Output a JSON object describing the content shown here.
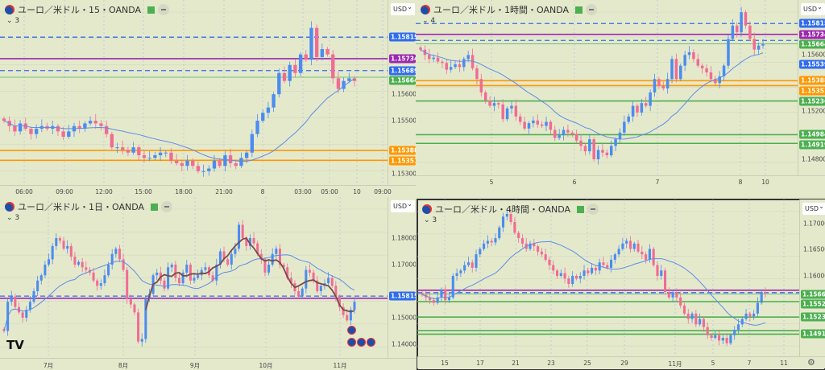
{
  "colors": {
    "bg": "#e5e9cc",
    "up": "#4a8cf0",
    "down": "#f06c93",
    "ma": "#5b8de8",
    "blue": "#2f6cf0",
    "purple": "#9c27b0",
    "green": "#4caf50",
    "orange": "#ff9800",
    "wave": "#7a4a4a"
  },
  "panels": [
    {
      "symbol": "ユーロ／米ドル",
      "interval": "15",
      "broker": "OANDA",
      "sep": "・",
      "collapse": "3",
      "currency": "USD",
      "axis_labels": [
        "1.15600",
        "1.15500",
        "1.15300"
      ],
      "time_labels": [
        "06:00",
        "09:00",
        "12:00",
        "15:00",
        "18:00",
        "21:00",
        "8",
        "03:00",
        "05:00",
        "10",
        "09:00"
      ],
      "hlines": [
        {
          "price": "1.15815",
          "color": "blue",
          "style": "dashed"
        },
        {
          "price": "1.15734",
          "color": "purple",
          "style": "solid"
        },
        {
          "price": "1.15689",
          "color": "blue",
          "style": "dashed"
        },
        {
          "price": "1.15664",
          "color": "green",
          "style": "thin"
        },
        {
          "price": "1.15388",
          "color": "orange",
          "style": "solid"
        },
        {
          "price": "1.15351",
          "color": "orange",
          "style": "solid"
        }
      ],
      "chart_data": {
        "type": "candlestick",
        "ylim": [
          1.15258,
          1.15955
        ],
        "ma_period": 20,
        "closes": [
          1.155,
          1.1548,
          1.1546,
          1.1549,
          1.1547,
          1.1545,
          1.1547,
          1.1548,
          1.1547,
          1.1548,
          1.1546,
          1.1544,
          1.1546,
          1.1548,
          1.1547,
          1.1549,
          1.155,
          1.1549,
          1.1548,
          1.1545,
          1.154,
          1.154,
          1.1539,
          1.1538,
          1.154,
          1.1537,
          1.1536,
          1.1536,
          1.1537,
          1.1538,
          1.1538,
          1.1535,
          1.1534,
          1.1533,
          1.1535,
          1.1533,
          1.1531,
          1.1531,
          1.1532,
          1.1535,
          1.1533,
          1.1537,
          1.1534,
          1.1533,
          1.1536,
          1.1538,
          1.1545,
          1.155,
          1.1553,
          1.1555,
          1.156,
          1.1568,
          1.1565,
          1.1571,
          1.1568,
          1.1575,
          1.1573,
          1.1585,
          1.1574,
          1.1577,
          1.1575,
          1.1566,
          1.1562,
          1.1565,
          1.1566,
          1.1565
        ]
      }
    },
    {
      "symbol": "ユーロ／米ドル",
      "interval": "1時間",
      "broker": "OANDA",
      "sep": "・",
      "collapse": "4",
      "currency": "USD",
      "axis_labels": [
        "1.15600",
        "1.15200",
        "1.14800"
      ],
      "time_labels": [
        "5",
        "6",
        "7",
        "8",
        "10"
      ],
      "hlines": [
        {
          "price": "1.15815",
          "color": "blue",
          "style": "dashed"
        },
        {
          "price": "1.15734",
          "color": "purple",
          "style": "solid"
        },
        {
          "price": "1.15689",
          "color": "blue",
          "style": "dashed",
          "hidden": true
        },
        {
          "price": "1.15664",
          "color": "green",
          "style": "thin"
        },
        {
          "price": "1.15539",
          "color": "blue",
          "style": "none"
        },
        {
          "price": "1.15388",
          "color": "orange",
          "style": "solid"
        },
        {
          "price": "1.15351",
          "color": "orange",
          "style": "solid"
        },
        {
          "price": "1.15236",
          "color": "green",
          "style": "solid"
        },
        {
          "price": "1.14984",
          "color": "green",
          "style": "solid"
        },
        {
          "price": "1.14919",
          "color": "green",
          "style": "solid"
        }
      ],
      "chart_data": {
        "type": "candlestick",
        "ylim": [
          1.1468,
          1.15991
        ],
        "ma_period": 20,
        "closes": [
          1.1562,
          1.1558,
          1.1555,
          1.1556,
          1.1553,
          1.1552,
          1.1547,
          1.1549,
          1.1551,
          1.1549,
          1.1555,
          1.1558,
          1.1548,
          1.154,
          1.153,
          1.1524,
          1.152,
          1.1522,
          1.1521,
          1.151,
          1.1518,
          1.152,
          1.1512,
          1.1508,
          1.1503,
          1.1507,
          1.1509,
          1.1506,
          1.1505,
          1.1508,
          1.1502,
          1.1496,
          1.1498,
          1.1502,
          1.15,
          1.1499,
          1.1494,
          1.149,
          1.1486,
          1.1495,
          1.148,
          1.1487,
          1.1485,
          1.1483,
          1.149,
          1.1495,
          1.15,
          1.1508,
          1.1512,
          1.152,
          1.1515,
          1.1522,
          1.152,
          1.153,
          1.154,
          1.1535,
          1.1533,
          1.154,
          1.1555,
          1.154,
          1.155,
          1.1558,
          1.156,
          1.1555,
          1.155,
          1.1548,
          1.1545,
          1.154,
          1.1537,
          1.1542,
          1.155,
          1.157,
          1.158,
          1.1575,
          1.159,
          1.158,
          1.157,
          1.1562,
          1.1565,
          1.1566
        ]
      }
    },
    {
      "symbol": "ユーロ／米ドル",
      "interval": "1日",
      "broker": "OANDA",
      "sep": "・",
      "collapse": "3",
      "currency": "USD",
      "axis_labels": [
        "1.18000",
        "1.17000",
        "1.15000",
        "1.14000"
      ],
      "time_labels": [
        "7月",
        "8月",
        "9月",
        "10月",
        "11月"
      ],
      "hlines": [
        {
          "price": "1.15815",
          "color": "blue",
          "style": "dashed"
        },
        {
          "price": "1.15734",
          "color": "purple",
          "style": "solid",
          "hidden": true
        }
      ],
      "chart_data": {
        "type": "candlestick",
        "ylim": [
          1.13485,
          1.19545
        ],
        "ma_period": 20,
        "closes": [
          1.145,
          1.156,
          1.158,
          1.154,
          1.152,
          1.15,
          1.153,
          1.156,
          1.16,
          1.164,
          1.166,
          1.17,
          1.172,
          1.177,
          1.18,
          1.179,
          1.176,
          1.177,
          1.173,
          1.17,
          1.171,
          1.169,
          1.168,
          1.167,
          1.164,
          1.162,
          1.163,
          1.166,
          1.17,
          1.174,
          1.176,
          1.172,
          1.168,
          1.157,
          1.155,
          1.152,
          1.141,
          1.142,
          1.157,
          1.159,
          1.166,
          1.167,
          1.164,
          1.161,
          1.169,
          1.17,
          1.165,
          1.163,
          1.167,
          1.17,
          1.164,
          1.165,
          1.166,
          1.168,
          1.169,
          1.166,
          1.164,
          1.17,
          1.175,
          1.172,
          1.17,
          1.174,
          1.176,
          1.185,
          1.18,
          1.177,
          1.18,
          1.178,
          1.174,
          1.172,
          1.167,
          1.17,
          1.174,
          1.176,
          1.17,
          1.169,
          1.165,
          1.163,
          1.16,
          1.158,
          1.161,
          1.168,
          1.167,
          1.164,
          1.16,
          1.162,
          1.163,
          1.165,
          1.162,
          1.158,
          1.154,
          1.151,
          1.149,
          1.153,
          1.156
        ]
      }
    },
    {
      "symbol": "ユーロ／米ドル",
      "interval": "4時間",
      "broker": "OANDA",
      "sep": "・",
      "collapse": "3",
      "currency": "USD",
      "axis_labels": [
        "1.17000",
        "1.16500",
        "1.16000"
      ],
      "time_labels": [
        "15",
        "17",
        "21",
        "23",
        "25",
        "29",
        "11月",
        "5",
        "7",
        "11"
      ],
      "hlines": [
        {
          "price": "1.15734",
          "color": "purple",
          "style": "solid",
          "hidden": true
        },
        {
          "price": "1.15689",
          "color": "blue",
          "style": "dashed",
          "hidden": true
        },
        {
          "price": "1.15664",
          "color": "green",
          "style": "thin"
        },
        {
          "price": "1.15522",
          "color": "green",
          "style": "solid"
        },
        {
          "price": "1.15236",
          "color": "green",
          "style": "solid"
        },
        {
          "price": "1.14984",
          "color": "green",
          "style": "solid",
          "hidden": true
        },
        {
          "price": "1.14919",
          "color": "green",
          "style": "solid"
        }
      ],
      "chart_data": {
        "type": "candlestick",
        "ylim": [
          1.14507,
          1.17418
        ],
        "ma_period": 20,
        "closes": [
          1.1565,
          1.156,
          1.1555,
          1.155,
          1.156,
          1.1575,
          1.1555,
          1.156,
          1.16,
          1.1605,
          1.161,
          1.162,
          1.1625,
          1.1615,
          1.164,
          1.165,
          1.166,
          1.1665,
          1.1662,
          1.167,
          1.169,
          1.171,
          1.1715,
          1.17,
          1.168,
          1.167,
          1.166,
          1.165,
          1.166,
          1.1655,
          1.1645,
          1.164,
          1.163,
          1.162,
          1.161,
          1.16,
          1.1605,
          1.1595,
          1.1585,
          1.16,
          1.1595,
          1.16,
          1.161,
          1.1605,
          1.1615,
          1.161,
          1.1625,
          1.162,
          1.1615,
          1.163,
          1.164,
          1.165,
          1.166,
          1.1665,
          1.165,
          1.166,
          1.1645,
          1.164,
          1.163,
          1.165,
          1.162,
          1.16,
          1.161,
          1.157,
          1.156,
          1.157,
          1.156,
          1.1545,
          1.153,
          1.152,
          1.153,
          1.151,
          1.152,
          1.1505,
          1.149,
          1.1485,
          1.149,
          1.148,
          1.1485,
          1.1475,
          1.149,
          1.15,
          1.151,
          1.152,
          1.153,
          1.1525,
          1.153,
          1.155,
          1.157,
          1.1568
        ]
      }
    }
  ]
}
